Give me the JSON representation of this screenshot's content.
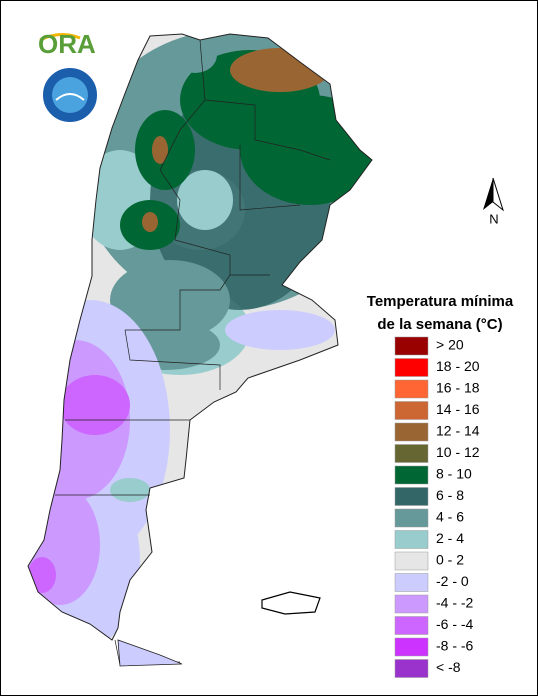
{
  "logo": {
    "text": "ORA"
  },
  "north_arrow": {
    "label": "N"
  },
  "legend": {
    "title": [
      "Temperatura mínima",
      "de la semana (°C)"
    ],
    "items": [
      {
        "label": "> 20",
        "color": "#990000"
      },
      {
        "label": "18 - 20",
        "color": "#ff0000"
      },
      {
        "label": "16 - 18",
        "color": "#ff6633"
      },
      {
        "label": "14 - 16",
        "color": "#cc6633"
      },
      {
        "label": "12 - 14",
        "color": "#996633"
      },
      {
        "label": "10 - 12",
        "color": "#666633"
      },
      {
        "label": "8 - 10",
        "color": "#006633"
      },
      {
        "label": "6 - 8",
        "color": "#336666"
      },
      {
        "label": "4 - 6",
        "color": "#669999"
      },
      {
        "label": "2 - 4",
        "color": "#99cccc"
      },
      {
        "label": "0 - 2",
        "color": "#e6e6e6"
      },
      {
        "label": "-2 - 0",
        "color": "#ccccff"
      },
      {
        "label": "-4 - -2",
        "color": "#cc99ff"
      },
      {
        "label": "-6 - -4",
        "color": "#cc66ff"
      },
      {
        "label": "-8 - -6",
        "color": "#cc33ff"
      },
      {
        "label": "< -8",
        "color": "#9933cc"
      }
    ]
  }
}
